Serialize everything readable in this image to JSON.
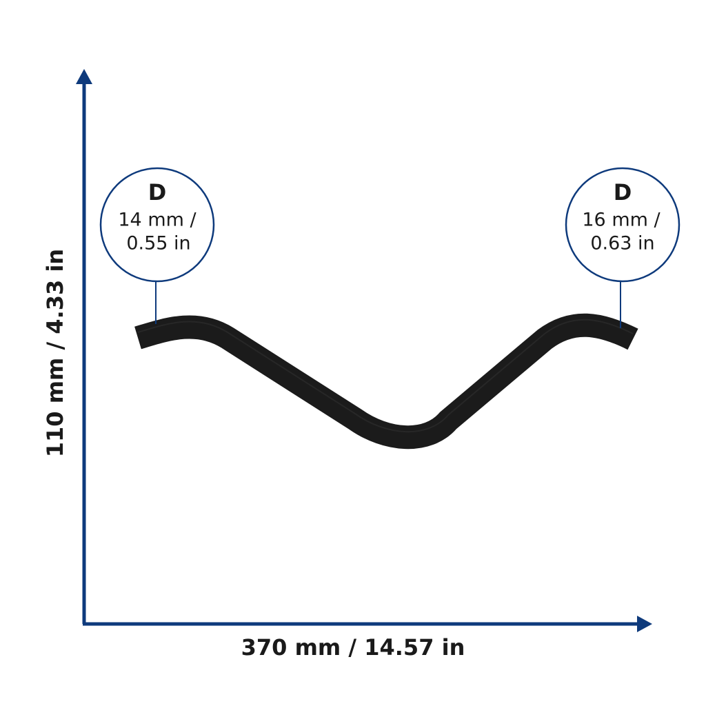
{
  "dimensions": {
    "height": "110 mm / 4.33 in",
    "width": "370 mm / 14.57 in"
  },
  "callouts": [
    {
      "label": "D",
      "line1": "14 mm /",
      "line2": "0.55 in"
    },
    {
      "label": "D",
      "line1": "16 mm /",
      "line2": "0.63 in"
    }
  ]
}
